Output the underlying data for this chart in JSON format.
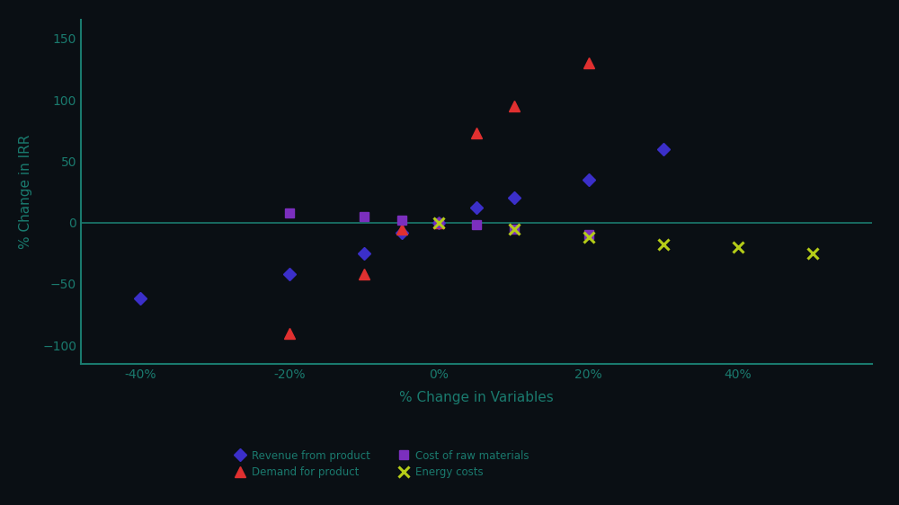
{
  "background_color": "#0a0f14",
  "plot_bg_color": "#0a0f14",
  "axis_color": "#1a7a6e",
  "tick_color": "#1a7a6e",
  "label_color": "#1a7a6e",
  "grid_zero_line_color": "#1a7a6e",
  "xlabel": "% Change in Variables",
  "ylabel": "% Change in IRR",
  "xlim": [
    -48,
    58
  ],
  "ylim": [
    -115,
    165
  ],
  "xticks": [
    -40,
    -20,
    0,
    20,
    40
  ],
  "yticks": [
    -100,
    -50,
    0,
    50,
    100,
    150
  ],
  "series": [
    {
      "label": "Revenue from product",
      "color": "#3b2fc9",
      "marker": "D",
      "markersize": 7,
      "x": [
        -40,
        -20,
        -10,
        -5,
        0,
        5,
        10,
        20,
        30
      ],
      "y": [
        -62,
        -42,
        -25,
        -8,
        0,
        12,
        20,
        35,
        60
      ]
    },
    {
      "label": "Demand for product",
      "color": "#e03030",
      "marker": "^",
      "markersize": 9,
      "x": [
        -20,
        -10,
        -5,
        0,
        5,
        10,
        20
      ],
      "y": [
        -90,
        -42,
        -5,
        0,
        73,
        95,
        130
      ]
    },
    {
      "label": "Cost of raw materials",
      "color": "#7b2fbe",
      "marker": "s",
      "markersize": 7,
      "x": [
        -20,
        -10,
        -5,
        0,
        5,
        10,
        20
      ],
      "y": [
        8,
        5,
        2,
        0,
        -2,
        -5,
        -10
      ]
    },
    {
      "label": "Energy costs",
      "color": "#b5cc18",
      "marker": "x",
      "markersize": 9,
      "markeredgewidth": 2.2,
      "x": [
        0,
        10,
        20,
        30,
        40,
        50
      ],
      "y": [
        0,
        -5,
        -12,
        -18,
        -20,
        -25
      ]
    }
  ],
  "legend_ncol": 2,
  "legend_fontsize": 8.5,
  "axis_fontsize": 11,
  "tick_fontsize": 10
}
